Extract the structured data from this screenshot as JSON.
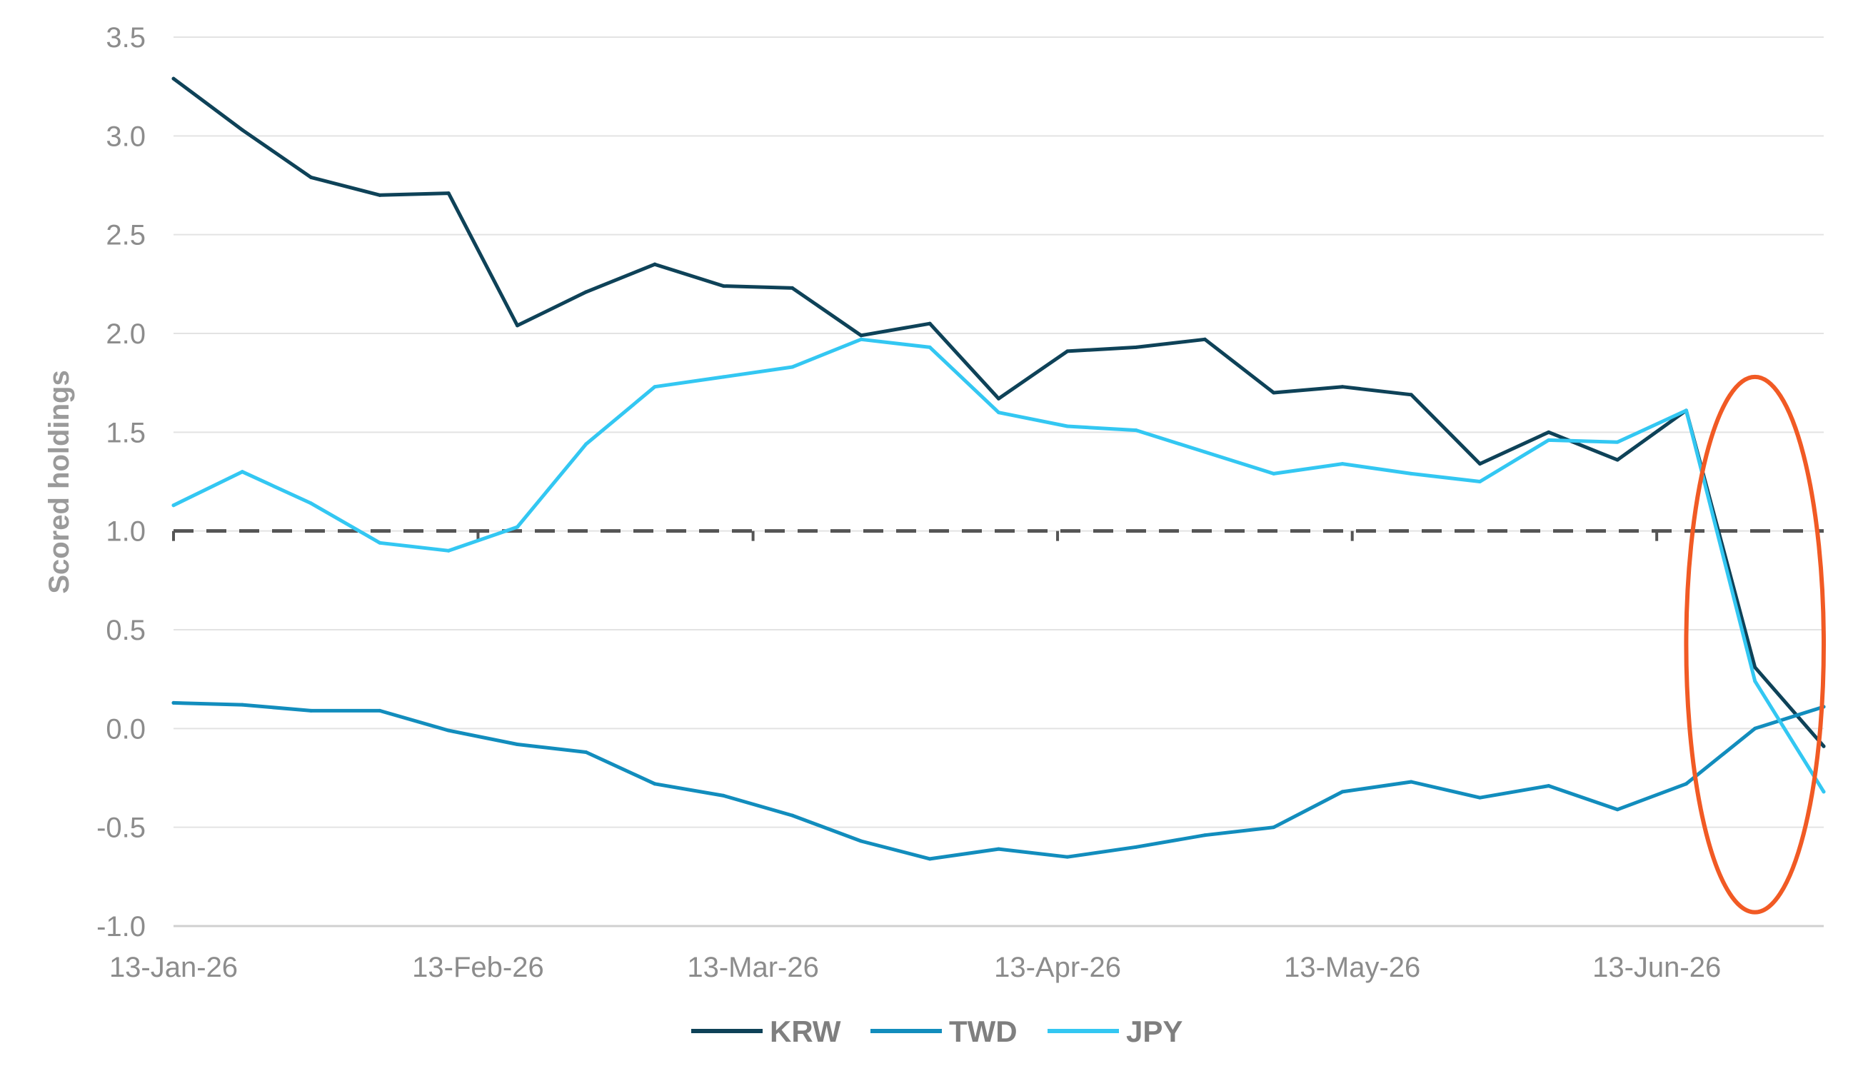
{
  "chart_data": {
    "type": "line",
    "title": "",
    "xlabel": "",
    "ylabel": "Scored holdings",
    "ylim": [
      -1.0,
      3.5
    ],
    "yticks": [
      "3.5",
      "3.0",
      "2.5",
      "2.0",
      "1.5",
      "1.0",
      "0.5",
      "0.0",
      "-0.5",
      "-1.0"
    ],
    "ytick_values": [
      3.5,
      3.0,
      2.5,
      2.0,
      1.5,
      1.0,
      0.5,
      0.0,
      -0.5,
      -1.0
    ],
    "xlim": [
      "2026-01-13",
      "2026-06-30"
    ],
    "xticks": [
      {
        "label": "13-Jan-26",
        "date": "2026-01-13"
      },
      {
        "label": "13-Feb-26",
        "date": "2026-02-13"
      },
      {
        "label": "13-Mar-26",
        "date": "2026-03-13"
      },
      {
        "label": "13-Apr-26",
        "date": "2026-04-13"
      },
      {
        "label": "13-May-26",
        "date": "2026-05-13"
      },
      {
        "label": "13-Jun-26",
        "date": "2026-06-13"
      }
    ],
    "grid": "horizontal",
    "legend_position": "bottom-center",
    "x": [
      "2026-01-13",
      "2026-01-20",
      "2026-01-27",
      "2026-02-03",
      "2026-02-10",
      "2026-02-17",
      "2026-02-24",
      "2026-03-03",
      "2026-03-10",
      "2026-03-17",
      "2026-03-24",
      "2026-03-31",
      "2026-04-07",
      "2026-04-14",
      "2026-04-21",
      "2026-04-28",
      "2026-05-05",
      "2026-05-12",
      "2026-05-19",
      "2026-05-26",
      "2026-06-02",
      "2026-06-09",
      "2026-06-16",
      "2026-06-23",
      "2026-06-30"
    ],
    "series": [
      {
        "name": "KRW",
        "color": "#0e4258",
        "values": [
          3.29,
          3.03,
          2.79,
          2.7,
          2.71,
          2.04,
          2.21,
          2.35,
          2.24,
          2.23,
          1.99,
          2.05,
          1.67,
          1.91,
          1.93,
          1.97,
          1.7,
          1.73,
          1.69,
          1.34,
          1.5,
          1.36,
          1.61,
          0.31,
          -0.09
        ]
      },
      {
        "name": "TWD",
        "color": "#128dbd",
        "values": [
          0.13,
          0.12,
          0.09,
          0.09,
          -0.01,
          -0.08,
          -0.12,
          -0.28,
          -0.34,
          -0.44,
          -0.57,
          -0.66,
          -0.61,
          -0.65,
          -0.6,
          -0.54,
          -0.5,
          -0.32,
          -0.27,
          -0.35,
          -0.29,
          -0.41,
          -0.28,
          0.0,
          0.11
        ]
      },
      {
        "name": "JPY",
        "color": "#33c7f2",
        "values": [
          1.13,
          1.3,
          1.14,
          0.94,
          0.9,
          1.02,
          1.44,
          1.73,
          1.78,
          1.83,
          1.97,
          1.93,
          1.6,
          1.53,
          1.51,
          1.4,
          1.29,
          1.34,
          1.29,
          1.25,
          1.46,
          1.45,
          1.61,
          0.24,
          -0.32
        ]
      }
    ],
    "reference_line": {
      "y": 1.0,
      "style": "dashed",
      "color": "#555555"
    },
    "highlight_ellipse": {
      "color": "#f15a24",
      "x_range": [
        "2026-06-16",
        "2026-06-30"
      ],
      "y_range": [
        -0.93,
        1.78
      ]
    }
  }
}
